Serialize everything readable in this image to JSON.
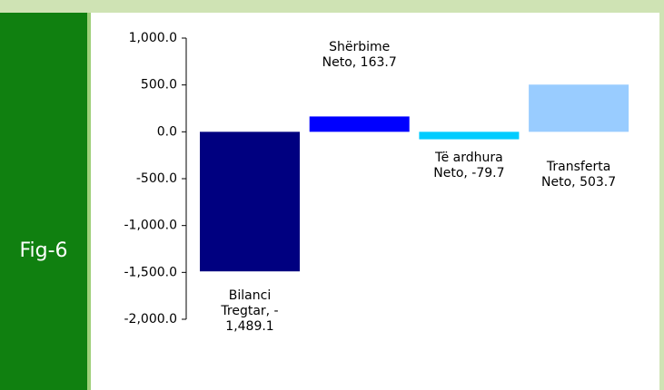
{
  "figure_label": "Fig-6",
  "chart_data": {
    "type": "bar",
    "values": [
      -1489.1,
      163.7,
      -79.7,
      503.7
    ],
    "value_labels": [
      "Bilanci Tregtar, - 1,489.1",
      "Shërbime Neto, 163.7",
      "Të ardhura Neto, -79.7",
      "Transferta Neto, 503.7"
    ],
    "colors": [
      "#000080",
      "#0000ff",
      "#00ccff",
      "#99ccff"
    ],
    "ylim": [
      -2000,
      1000
    ],
    "yticks": [
      {
        "value": 1000,
        "label": "1,000.0"
      },
      {
        "value": 500,
        "label": "500.0"
      },
      {
        "value": 0,
        "label": "0.0"
      },
      {
        "value": -500,
        "label": "-500.0"
      },
      {
        "value": -1000,
        "label": "-1,000.0"
      },
      {
        "value": -1500,
        "label": "-1,500.0"
      },
      {
        "value": -2000,
        "label": "-2,000.0"
      }
    ],
    "grid": false
  }
}
